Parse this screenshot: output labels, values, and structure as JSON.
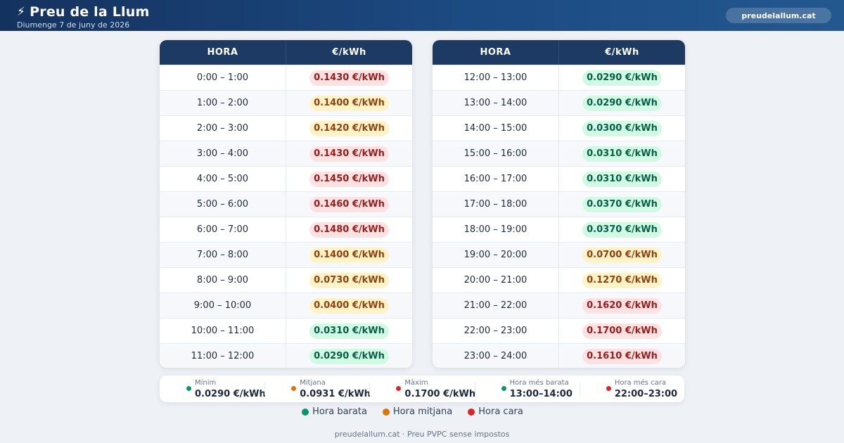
{
  "header": {
    "title": "Preu de la Llum",
    "date": "Diumenge 7 de juny de 2026",
    "site_label": "preudelallum.cat",
    "colors": {
      "bar_start": "#14325e",
      "bar_end": "#23588f"
    }
  },
  "table": {
    "col_hour": "HORA",
    "col_price": "€/kWh",
    "left_rows": [
      {
        "hour": "0:00 – 1:00",
        "price": "0.1430 €/kWh",
        "level": "high"
      },
      {
        "hour": "1:00 – 2:00",
        "price": "0.1400 €/kWh",
        "level": "mid"
      },
      {
        "hour": "2:00 – 3:00",
        "price": "0.1420 €/kWh",
        "level": "mid"
      },
      {
        "hour": "3:00 – 4:00",
        "price": "0.1430 €/kWh",
        "level": "high"
      },
      {
        "hour": "4:00 – 5:00",
        "price": "0.1450 €/kWh",
        "level": "high"
      },
      {
        "hour": "5:00 – 6:00",
        "price": "0.1460 €/kWh",
        "level": "high"
      },
      {
        "hour": "6:00 – 7:00",
        "price": "0.1480 €/kWh",
        "level": "high"
      },
      {
        "hour": "7:00 – 8:00",
        "price": "0.1400 €/kWh",
        "level": "mid"
      },
      {
        "hour": "8:00 – 9:00",
        "price": "0.0730 €/kWh",
        "level": "mid"
      },
      {
        "hour": "9:00 – 10:00",
        "price": "0.0400 €/kWh",
        "level": "mid"
      },
      {
        "hour": "10:00 – 11:00",
        "price": "0.0310 €/kWh",
        "level": "cheap"
      },
      {
        "hour": "11:00 – 12:00",
        "price": "0.0290 €/kWh",
        "level": "cheap"
      }
    ],
    "right_rows": [
      {
        "hour": "12:00 – 13:00",
        "price": "0.0290 €/kWh",
        "level": "cheap"
      },
      {
        "hour": "13:00 – 14:00",
        "price": "0.0290 €/kWh",
        "level": "cheap"
      },
      {
        "hour": "14:00 – 15:00",
        "price": "0.0300 €/kWh",
        "level": "cheap"
      },
      {
        "hour": "15:00 – 16:00",
        "price": "0.0310 €/kWh",
        "level": "cheap"
      },
      {
        "hour": "16:00 – 17:00",
        "price": "0.0310 €/kWh",
        "level": "cheap"
      },
      {
        "hour": "17:00 – 18:00",
        "price": "0.0370 €/kWh",
        "level": "cheap"
      },
      {
        "hour": "18:00 – 19:00",
        "price": "0.0370 €/kWh",
        "level": "cheap"
      },
      {
        "hour": "19:00 – 20:00",
        "price": "0.0700 €/kWh",
        "level": "mid"
      },
      {
        "hour": "20:00 – 21:00",
        "price": "0.1270 €/kWh",
        "level": "mid"
      },
      {
        "hour": "21:00 – 22:00",
        "price": "0.1620 €/kWh",
        "level": "high"
      },
      {
        "hour": "22:00 – 23:00",
        "price": "0.1700 €/kWh",
        "level": "high"
      },
      {
        "hour": "23:00 – 24:00",
        "price": "0.1610 €/kWh",
        "level": "high"
      }
    ]
  },
  "stats": [
    {
      "label": "Mínim",
      "value": "0.0290 €/kWh",
      "color": "#059669"
    },
    {
      "label": "Mitjana",
      "value": "0.0931 €/kWh",
      "color": "#d97706"
    },
    {
      "label": "Màxim",
      "value": "0.1700 €/kWh",
      "color": "#dc2626"
    },
    {
      "label": "Hora més barata",
      "value": "13:00–14:00",
      "color": "#059669"
    },
    {
      "label": "Hora més cara",
      "value": "22:00–23:00",
      "color": "#dc2626"
    }
  ],
  "legend": [
    {
      "label": "Hora barata",
      "color": "#059669"
    },
    {
      "label": "Hora mitjana",
      "color": "#d97706"
    },
    {
      "label": "Hora cara",
      "color": "#dc2626"
    }
  ],
  "footer": "preudelallum.cat · Preu PVPC sense impostos",
  "level_colors": {
    "cheap": {
      "bg": "#d1fae5",
      "fg": "#065f46"
    },
    "mid": {
      "bg": "#fef3c7",
      "fg": "#92400e"
    },
    "high": {
      "bg": "#fee2e2",
      "fg": "#991b1b"
    }
  }
}
